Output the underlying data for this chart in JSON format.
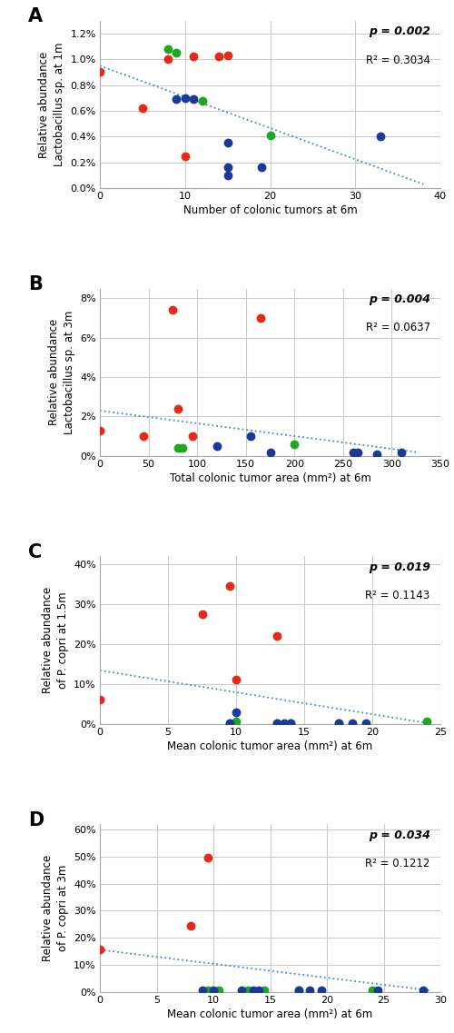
{
  "panel_A": {
    "label": "A",
    "xlabel": "Number of colonic tumors at 6m",
    "ylabel": "Relative abundance\nLactobacillus sp. at 1m",
    "p_value": "p = 0.002",
    "r2_value": "R² = 0.3034",
    "xlim": [
      0,
      40
    ],
    "ylim": [
      0.0,
      0.013
    ],
    "yticks": [
      0.0,
      0.002,
      0.004,
      0.006,
      0.008,
      0.01,
      0.012
    ],
    "ytick_labels": [
      "0.0%",
      "0.2%",
      "0.4%",
      "0.6%",
      "0.8%",
      "1.0%",
      "1.2%"
    ],
    "xticks": [
      0,
      10,
      20,
      30,
      40
    ],
    "red_x": [
      0,
      5,
      8,
      10,
      11,
      14,
      15
    ],
    "red_y": [
      0.009,
      0.0062,
      0.01,
      0.0025,
      0.0102,
      0.0102,
      0.0103
    ],
    "green_x": [
      8,
      9,
      12,
      20
    ],
    "green_y": [
      0.0108,
      0.0105,
      0.0068,
      0.0041
    ],
    "blue_x": [
      9,
      10,
      11,
      15,
      15,
      15,
      19,
      33
    ],
    "blue_y": [
      0.0069,
      0.007,
      0.0069,
      0.0035,
      0.001,
      0.0016,
      0.0016,
      0.004
    ],
    "trendline_x": [
      0,
      38
    ],
    "trendline_y": [
      0.0095,
      0.0003
    ]
  },
  "panel_B": {
    "label": "B",
    "xlabel": "Total colonic tumor area (mm²) at 6m",
    "ylabel": "Relative abundance\nLactobacillus sp. at 3m",
    "p_value": "p = 0.004",
    "r2_value": "R² = 0.0637",
    "xlim": [
      0,
      350
    ],
    "ylim": [
      0.0,
      0.085
    ],
    "yticks": [
      0.0,
      0.02,
      0.04,
      0.06,
      0.08
    ],
    "ytick_labels": [
      "0%",
      "2%",
      "4%",
      "6%",
      "8%"
    ],
    "xticks": [
      0,
      50,
      100,
      150,
      200,
      250,
      300,
      350
    ],
    "red_x": [
      0,
      45,
      75,
      80,
      95,
      165
    ],
    "red_y": [
      0.013,
      0.01,
      0.074,
      0.024,
      0.01,
      0.07
    ],
    "green_x": [
      80,
      85,
      200
    ],
    "green_y": [
      0.004,
      0.004,
      0.006
    ],
    "blue_x": [
      120,
      155,
      175,
      260,
      265,
      285,
      310
    ],
    "blue_y": [
      0.005,
      0.01,
      0.002,
      0.002,
      0.002,
      0.001,
      0.002
    ],
    "trendline_x": [
      0,
      325
    ],
    "trendline_y": [
      0.023,
      0.002
    ]
  },
  "panel_C": {
    "label": "C",
    "xlabel": "Mean colonic tumor area (mm²) at 6m",
    "ylabel": "Relative abundance\nof P. copri at 1.5m",
    "p_value": "p = 0.019",
    "r2_value": "R² = 0.1143",
    "xlim": [
      0,
      25
    ],
    "ylim": [
      0.0,
      0.42
    ],
    "yticks": [
      0.0,
      0.1,
      0.2,
      0.3,
      0.4
    ],
    "ytick_labels": [
      "0%",
      "10%",
      "20%",
      "30%",
      "40%"
    ],
    "xticks": [
      0,
      5,
      10,
      15,
      20,
      25
    ],
    "red_x": [
      0,
      7.5,
      9.5,
      10.0,
      13.0
    ],
    "red_y": [
      0.06,
      0.275,
      0.345,
      0.11,
      0.22
    ],
    "green_x": [
      9.5,
      10.0,
      13.0,
      14.0,
      17.5,
      24.0
    ],
    "green_y": [
      0.002,
      0.005,
      0.002,
      0.002,
      0.002,
      0.005
    ],
    "blue_x": [
      9.5,
      10.0,
      13.0,
      13.5,
      14.0,
      17.5,
      18.5,
      19.5
    ],
    "blue_y": [
      0.002,
      0.03,
      0.002,
      0.002,
      0.002,
      0.002,
      0.002,
      0.002
    ],
    "trendline_x": [
      0,
      24
    ],
    "trendline_y": [
      0.134,
      0.002
    ]
  },
  "panel_D": {
    "label": "D",
    "xlabel": "Mean colonic tumor area (mm²) at 6m",
    "ylabel": "Relative abundance\nof P. copri at 3m",
    "p_value": "p = 0.034",
    "r2_value": "R² = 0.1212",
    "xlim": [
      0,
      30
    ],
    "ylim": [
      0.0,
      0.62
    ],
    "yticks": [
      0.0,
      0.1,
      0.2,
      0.3,
      0.4,
      0.5,
      0.6
    ],
    "ytick_labels": [
      "0%",
      "10%",
      "20%",
      "30%",
      "40%",
      "50%",
      "60%"
    ],
    "xticks": [
      0,
      5,
      10,
      15,
      20,
      25,
      30
    ],
    "red_x": [
      0,
      8.0,
      9.5
    ],
    "red_y": [
      0.155,
      0.245,
      0.495
    ],
    "green_x": [
      9.5,
      10.5,
      13.0,
      14.5,
      17.5,
      24.0
    ],
    "green_y": [
      0.005,
      0.005,
      0.005,
      0.005,
      0.005,
      0.005
    ],
    "blue_x": [
      9.0,
      10.0,
      12.5,
      13.5,
      14.0,
      17.5,
      18.5,
      19.5,
      24.5,
      28.5
    ],
    "blue_y": [
      0.005,
      0.005,
      0.005,
      0.005,
      0.005,
      0.005,
      0.005,
      0.005,
      0.005,
      0.005
    ],
    "trendline_x": [
      0,
      29
    ],
    "trendline_y": [
      0.155,
      0.005
    ]
  },
  "dot_size": 50,
  "red_color": "#e8281a",
  "green_color": "#1fa720",
  "blue_color": "#1a3a99",
  "trendline_color": "#4488cc",
  "background_color": "#ffffff",
  "grid_color": "#cccccc"
}
